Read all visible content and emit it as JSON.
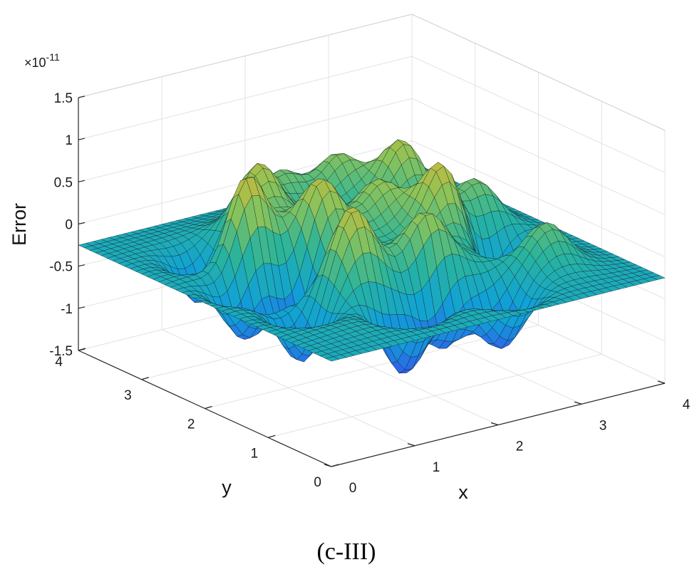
{
  "chart_data": {
    "type": "surface",
    "title": "",
    "caption": "(c-III)",
    "xlabel": "x",
    "ylabel": "y",
    "zlabel": "Error",
    "z_exponent": "×10",
    "z_exponent_power": "-11",
    "xlim": [
      0,
      4
    ],
    "ylim": [
      0,
      4
    ],
    "zlim": [
      -1.5,
      1.5
    ],
    "x_ticks": [
      "0",
      "1",
      "2",
      "3",
      "4"
    ],
    "y_ticks": [
      "0",
      "1",
      "2",
      "3",
      "4"
    ],
    "z_ticks": [
      "-1.5",
      "-1",
      "-0.5",
      "0",
      "0.5",
      "1",
      "1.5"
    ],
    "grid": true,
    "colormap": "parula",
    "colors": [
      "#3e26a8",
      "#2f5fea",
      "#10a2d6",
      "#2ab49c",
      "#8ac35a",
      "#d9b733",
      "#f9dc24"
    ],
    "peak_amplitude": 1.3,
    "peak_locations": [
      [
        0.9,
        2.6,
        1.45
      ],
      [
        1.3,
        1.4,
        1.0
      ],
      [
        1.45,
        3.1,
        1.05
      ],
      [
        1.6,
        2.3,
        0.8
      ],
      [
        2.0,
        3.5,
        0.8
      ],
      [
        2.1,
        1.2,
        0.95
      ],
      [
        2.35,
        2.35,
        0.55
      ],
      [
        2.6,
        3.35,
        0.9
      ],
      [
        2.75,
        1.85,
        0.95
      ],
      [
        3.05,
        2.9,
        1.1
      ],
      [
        3.3,
        0.9,
        0.85
      ],
      [
        3.4,
        2.15,
        0.75
      ]
    ],
    "trough_locations": [
      [
        0.6,
        1.3,
        -1.25
      ],
      [
        0.7,
        3.0,
        -1.3
      ],
      [
        1.4,
        0.7,
        -1.35
      ],
      [
        2.0,
        0.9,
        -1.25
      ],
      [
        2.5,
        0.55,
        -1.3
      ],
      [
        3.2,
        1.5,
        -1.25
      ],
      [
        0.5,
        2.1,
        -1.2
      ],
      [
        1.1,
        2.0,
        -1.05
      ]
    ]
  }
}
